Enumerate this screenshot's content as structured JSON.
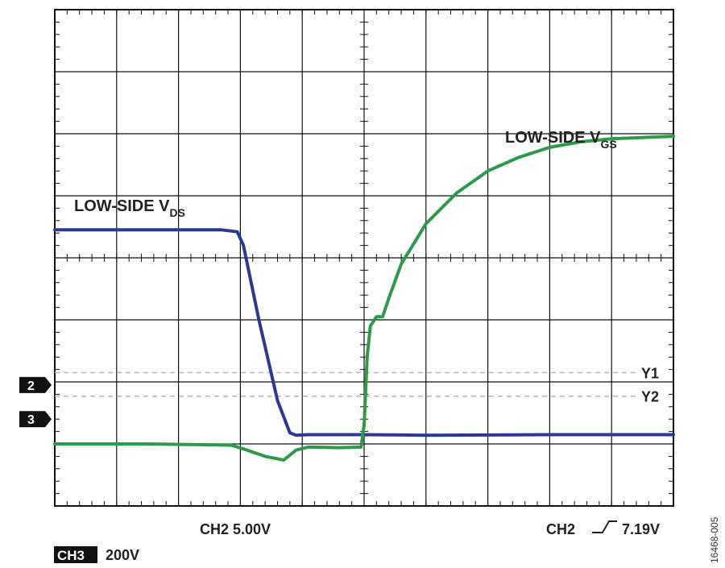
{
  "chart_data": {
    "type": "line",
    "title": "",
    "xlabel": "",
    "ylabel": "",
    "grid": true,
    "grid_divisions": {
      "x": 10,
      "y": 8
    },
    "xlim": [
      0,
      10
    ],
    "ylim": [
      0,
      8
    ],
    "units": "oscilloscope divisions",
    "series": [
      {
        "name": "LOW-SIDE V",
        "subscript": "DS",
        "color": "#2a3a93",
        "x": [
          0,
          2.0,
          2.7,
          2.95,
          3.05,
          3.3,
          3.6,
          3.8,
          3.9,
          4.1,
          5.0,
          6.0,
          8.0,
          10
        ],
        "y": [
          4.45,
          4.45,
          4.45,
          4.42,
          4.2,
          3.0,
          1.7,
          1.18,
          1.14,
          1.15,
          1.15,
          1.14,
          1.15,
          1.15
        ]
      },
      {
        "name": "LOW-SIDE V",
        "subscript": "GS",
        "color": "#2e9a48",
        "x": [
          0,
          1.5,
          2.85,
          3.05,
          3.4,
          3.7,
          3.9,
          4.1,
          4.6,
          4.95,
          5.0,
          5.05,
          5.1,
          5.2,
          5.3,
          5.4,
          5.6,
          6.0,
          6.5,
          7.0,
          7.5,
          8.0,
          8.5,
          9.0,
          10
        ],
        "y": [
          1.0,
          1.0,
          0.98,
          0.92,
          0.8,
          0.74,
          0.9,
          0.95,
          0.94,
          0.95,
          1.3,
          2.4,
          2.9,
          3.05,
          3.05,
          3.35,
          3.9,
          4.55,
          5.05,
          5.4,
          5.62,
          5.78,
          5.87,
          5.92,
          5.96
        ]
      }
    ],
    "reference_lines": [
      {
        "label": "Y1",
        "y": 2.15
      },
      {
        "label": "Y2",
        "y": 1.77
      }
    ],
    "channel_markers": [
      {
        "label": "2",
        "y": 1.95
      },
      {
        "label": "3",
        "y": 1.4
      }
    ],
    "bottom_labels": {
      "ch2_scale": "CH2 5.00V",
      "trigger": "CH2",
      "trigger_level": "7.19V",
      "ch3_badge": "CH3",
      "ch3_scale": "200V"
    },
    "figure_id": "16468-005"
  }
}
